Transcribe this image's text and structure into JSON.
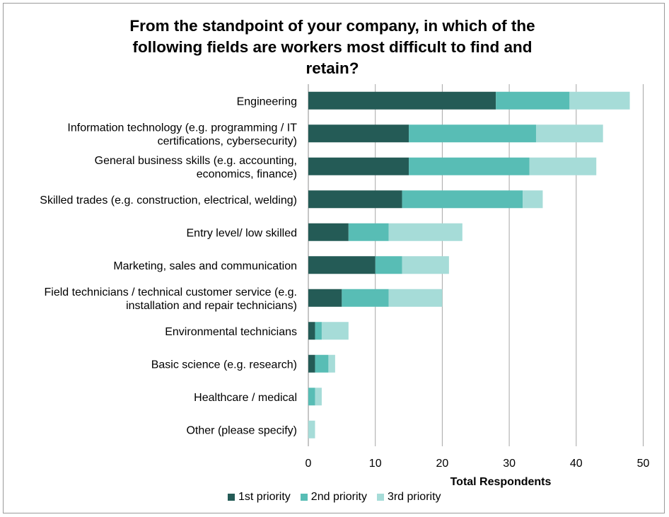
{
  "chart_data": {
    "type": "bar",
    "orientation": "horizontal",
    "stacked": true,
    "title": "From the standpoint of your company, in which of the following fields are workers most difficult to find and retain?",
    "title_lines": [
      "From the standpoint of your company, in which of the",
      "following fields are workers most difficult to find and",
      "retain?"
    ],
    "xlabel": "Total Respondents",
    "ylabel": "",
    "xlim": [
      0,
      50
    ],
    "xticks": [
      0,
      10,
      20,
      30,
      40,
      50
    ],
    "grid": "vertical",
    "legend_position": "bottom",
    "categories": [
      [
        "Engineering"
      ],
      [
        "Information technology (e.g. programming / IT",
        "certifications, cybersecurity)"
      ],
      [
        "General business skills (e.g. accounting,",
        "economics, finance)"
      ],
      [
        "Skilled trades (e.g. construction, electrical, welding)"
      ],
      [
        "Entry level/ low skilled"
      ],
      [
        "Marketing, sales and communication"
      ],
      [
        "Field technicians / technical customer service (e.g.",
        "installation and repair technicians)"
      ],
      [
        "Environmental technicians"
      ],
      [
        "Basic science (e.g. research)"
      ],
      [
        "Healthcare / medical"
      ],
      [
        "Other (please specify)"
      ]
    ],
    "series": [
      {
        "name": "1st priority",
        "color": "#245b56",
        "values": [
          28,
          15,
          15,
          14,
          6,
          10,
          5,
          1,
          1,
          0,
          0
        ]
      },
      {
        "name": "2nd priority",
        "color": "#58bdb5",
        "values": [
          11,
          19,
          18,
          18,
          6,
          4,
          7,
          1,
          2,
          1,
          0
        ]
      },
      {
        "name": "3rd priority",
        "color": "#a6dcd8",
        "values": [
          9,
          10,
          10,
          3,
          11,
          7,
          8,
          4,
          1,
          1,
          1
        ]
      }
    ]
  }
}
